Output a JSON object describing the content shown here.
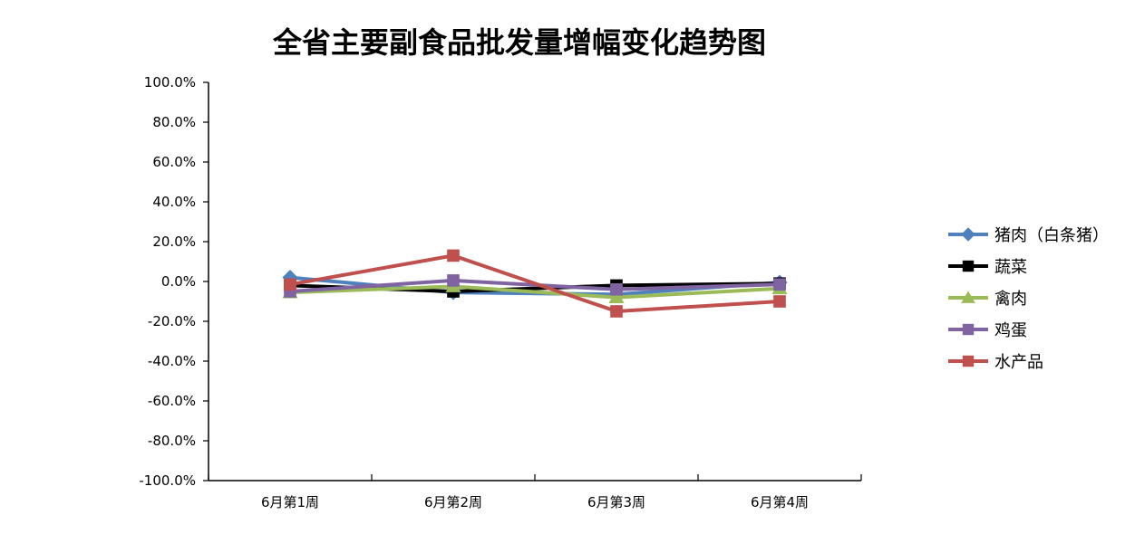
{
  "chart_data": {
    "type": "line",
    "title": "全省主要副食品批发量增幅变化趋势图",
    "categories": [
      "6月第1周",
      "6月第2周",
      "6月第3周",
      "6月第4周"
    ],
    "ylim": [
      -100,
      100
    ],
    "yticks": [
      100,
      80,
      60,
      40,
      20,
      0,
      -20,
      -40,
      -60,
      -80,
      -100
    ],
    "ytick_labels": [
      "100.0%",
      "80.0%",
      "60.0%",
      "40.0%",
      "20.0%",
      "0.0%",
      "-20.0%",
      "-40.0%",
      "-60.0%",
      "-80.0%",
      "-100.0%"
    ],
    "grid": false,
    "legend_position": "right",
    "series": [
      {
        "name": "猪肉（白条猪）",
        "color": "#4F81BD",
        "marker": "diamond",
        "values": [
          2.0,
          -5.5,
          -6.5,
          -0.5
        ]
      },
      {
        "name": "蔬菜",
        "color": "#000000",
        "marker": "square",
        "values": [
          -2.0,
          -5.0,
          -2.0,
          -1.0
        ]
      },
      {
        "name": "禽肉",
        "color": "#9BBB59",
        "marker": "triangle",
        "values": [
          -5.5,
          -2.5,
          -8.0,
          -3.5
        ]
      },
      {
        "name": "鸡蛋",
        "color": "#8064A2",
        "marker": "square",
        "values": [
          -5.0,
          0.5,
          -4.0,
          -1.5
        ]
      },
      {
        "name": "水产品",
        "color": "#C0504D",
        "marker": "square",
        "values": [
          -1.5,
          13.0,
          -15.0,
          -10.0
        ]
      }
    ]
  }
}
